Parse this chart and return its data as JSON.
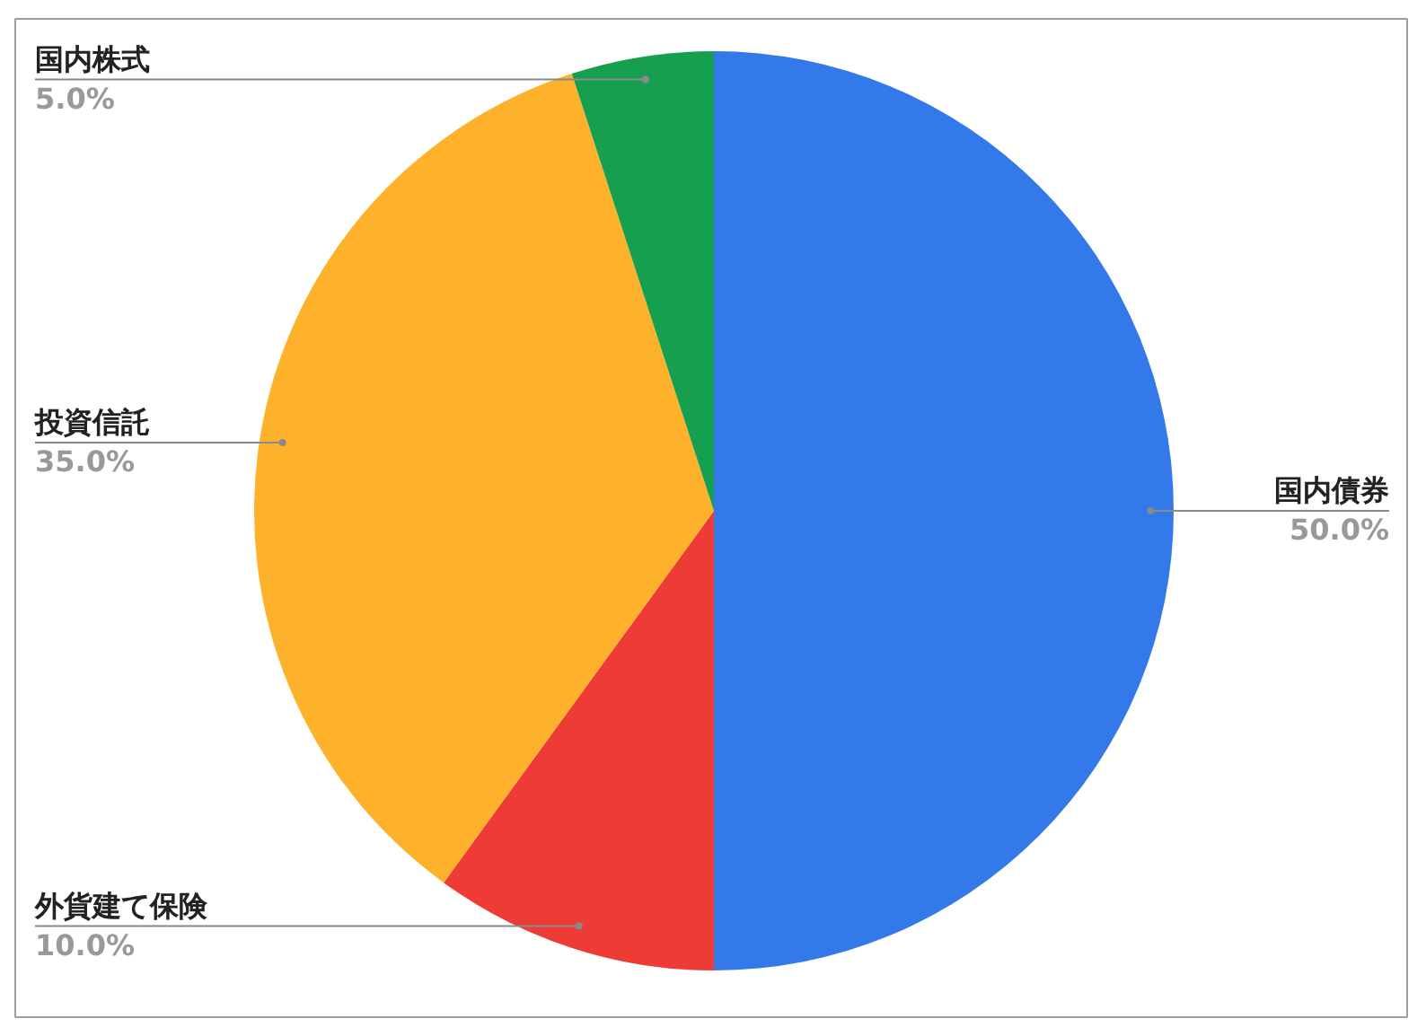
{
  "chart_data": {
    "type": "pie",
    "categories": [
      "国内債券",
      "外貨建て保険",
      "投資信託",
      "国内株式"
    ],
    "values": [
      50,
      10,
      35,
      5
    ],
    "colors": [
      "#3379ea",
      "#ef3b36",
      "#feb12b",
      "#169f4e"
    ],
    "value_labels": [
      "50.0%",
      "10.0%",
      "35.0%",
      "5.0%"
    ]
  }
}
